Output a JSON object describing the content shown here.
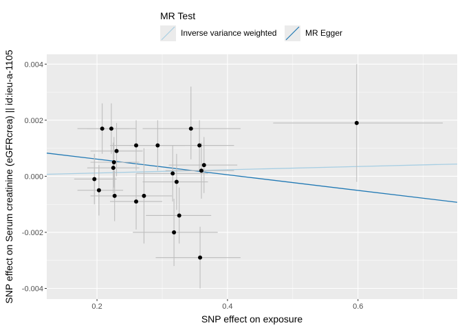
{
  "chart_data": {
    "type": "scatter",
    "xlabel": "SNP effect on exposure",
    "ylabel": "SNP effect on Serum creatinine (eGFRcrea) || id:ieu-a-1105",
    "xlim": [
      0.123,
      0.752
    ],
    "ylim": [
      -0.00438,
      0.00435
    ],
    "x_ticks": [
      0.2,
      0.4,
      0.6
    ],
    "x_tick_labels": [
      "0.2",
      "0.4",
      "0.6"
    ],
    "y_ticks": [
      -0.004,
      -0.002,
      0.0,
      0.002,
      0.004
    ],
    "y_tick_labels": [
      "-0.004",
      "-0.002",
      "0.000",
      "0.002",
      "0.004"
    ],
    "grid": true,
    "legend": {
      "title": "MR Test",
      "position": "top",
      "entries": [
        {
          "label": "Inverse variance weighted",
          "color": "#a6cee3"
        },
        {
          "label": "MR Egger",
          "color": "#1f78b4"
        }
      ]
    },
    "lines": [
      {
        "name": "Inverse variance weighted",
        "color": "#a6cee3",
        "intercept": 0,
        "slope": 0.00058
      },
      {
        "name": "MR Egger",
        "color": "#1f78b4",
        "intercept": 0.00117,
        "slope": -0.00279
      }
    ],
    "points": [
      {
        "x": 0.208,
        "y": 0.0017,
        "x_lo": 0.17,
        "x_hi": 0.25,
        "y_lo": 0.0008,
        "y_hi": 0.0026
      },
      {
        "x": 0.222,
        "y": 0.0017,
        "x_lo": 0.185,
        "x_hi": 0.26,
        "y_lo": 0.0008,
        "y_hi": 0.0026
      },
      {
        "x": 0.23,
        "y": 0.0009,
        "x_lo": 0.19,
        "x_hi": 0.27,
        "y_lo": 0.0,
        "y_hi": 0.0019
      },
      {
        "x": 0.226,
        "y": 0.0005,
        "x_lo": 0.19,
        "x_hi": 0.265,
        "y_lo": -0.0004,
        "y_hi": 0.0014
      },
      {
        "x": 0.225,
        "y": 0.0003,
        "x_lo": 0.185,
        "x_hi": 0.265,
        "y_lo": -0.0006,
        "y_hi": 0.0012
      },
      {
        "x": 0.196,
        "y": -0.0001,
        "x_lo": 0.165,
        "x_hi": 0.23,
        "y_lo": -0.001,
        "y_hi": 0.0008
      },
      {
        "x": 0.203,
        "y": -0.0005,
        "x_lo": 0.17,
        "x_hi": 0.24,
        "y_lo": -0.0014,
        "y_hi": 0.0004
      },
      {
        "x": 0.227,
        "y": -0.0007,
        "x_lo": 0.19,
        "x_hi": 0.265,
        "y_lo": -0.0016,
        "y_hi": 0.0002
      },
      {
        "x": 0.26,
        "y": 0.0011,
        "x_lo": 0.22,
        "x_hi": 0.3,
        "y_lo": 0.0002,
        "y_hi": 0.002
      },
      {
        "x": 0.293,
        "y": 0.0011,
        "x_lo": 0.25,
        "x_hi": 0.335,
        "y_lo": 0.0002,
        "y_hi": 0.002
      },
      {
        "x": 0.26,
        "y": -0.0009,
        "x_lo": 0.22,
        "x_hi": 0.3,
        "y_lo": -0.0019,
        "y_hi": 0.0001
      },
      {
        "x": 0.272,
        "y": -0.0007,
        "x_lo": 0.23,
        "x_hi": 0.315,
        "y_lo": -0.0024,
        "y_hi": 0.001
      },
      {
        "x": 0.344,
        "y": 0.0017,
        "x_lo": 0.27,
        "x_hi": 0.42,
        "y_lo": 0.0006,
        "y_hi": 0.0032
      },
      {
        "x": 0.357,
        "y": 0.0011,
        "x_lo": 0.3,
        "x_hi": 0.41,
        "y_lo": 0.0002,
        "y_hi": 0.002
      },
      {
        "x": 0.364,
        "y": 0.0004,
        "x_lo": 0.31,
        "x_hi": 0.415,
        "y_lo": -0.0006,
        "y_hi": 0.0014
      },
      {
        "x": 0.36,
        "y": 0.0002,
        "x_lo": 0.305,
        "x_hi": 0.41,
        "y_lo": -0.0008,
        "y_hi": 0.0012
      },
      {
        "x": 0.316,
        "y": 0.0001,
        "x_lo": 0.26,
        "x_hi": 0.37,
        "y_lo": -0.0009,
        "y_hi": 0.0011
      },
      {
        "x": 0.322,
        "y": -0.0002,
        "x_lo": 0.27,
        "x_hi": 0.37,
        "y_lo": -0.0012,
        "y_hi": 0.0008
      },
      {
        "x": 0.326,
        "y": -0.0014,
        "x_lo": 0.275,
        "x_hi": 0.375,
        "y_lo": -0.0024,
        "y_hi": -0.0004
      },
      {
        "x": 0.318,
        "y": -0.002,
        "x_lo": 0.255,
        "x_hi": 0.385,
        "y_lo": -0.0032,
        "y_hi": -0.0008
      },
      {
        "x": 0.358,
        "y": -0.0029,
        "x_lo": 0.29,
        "x_hi": 0.42,
        "y_lo": -0.004,
        "y_hi": -0.0018
      },
      {
        "x": 0.598,
        "y": 0.0019,
        "x_lo": 0.47,
        "x_hi": 0.73,
        "y_lo": -0.0002,
        "y_hi": 0.004
      }
    ],
    "colors": {
      "panel_background": "#ebebeb",
      "grid": "#ffffff",
      "errorbar": "#bdbdbd",
      "point": "#000000"
    }
  }
}
